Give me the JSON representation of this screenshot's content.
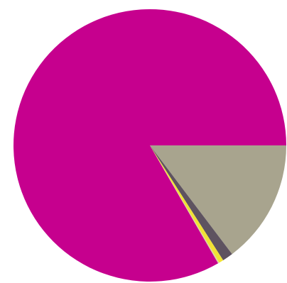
{
  "chart_data": {
    "type": "pie",
    "title": "",
    "start_angle_deg": 0,
    "direction": "clockwise",
    "series": [
      {
        "values": [
          87,
          7.5,
          3.2,
          0.9,
          1.4
        ],
        "colors": [
          "#a8a48e",
          "#5e5360",
          "#f0e234",
          "#d9d2a3",
          "#c6008e"
        ]
      }
    ],
    "legend": "none",
    "labels": "none"
  }
}
